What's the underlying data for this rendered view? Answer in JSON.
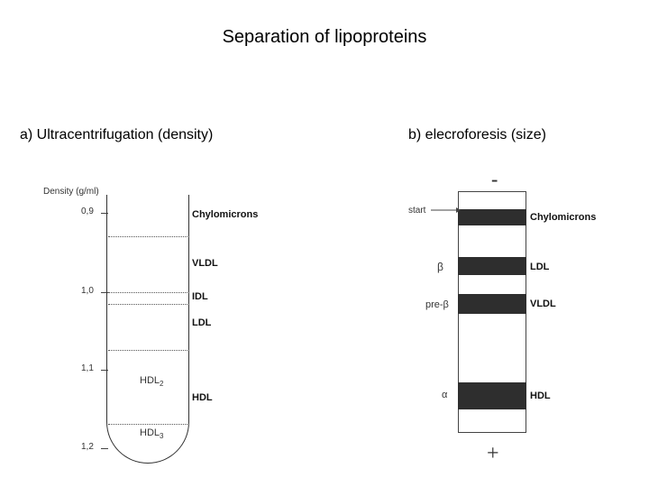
{
  "title": "Separation of lipoproteins",
  "panel_a": {
    "heading": "a) Ultracentrifugation (density)",
    "axis_label": "Density (g/ml)",
    "ticks": [
      "0,9",
      "1,0",
      "1,1",
      "1,2"
    ],
    "classes": [
      "Chylomicrons",
      "VLDL",
      "IDL",
      "LDL",
      "HDL"
    ],
    "sub_hdl2": "HDL",
    "sub_hdl2_idx": "2",
    "sub_hdl3": "HDL",
    "sub_hdl3_idx": "3"
  },
  "panel_b": {
    "heading": "b) elecroforesis (size)",
    "cathode": "-",
    "anode": "+",
    "start_label": "start",
    "mobility_labels": [
      "β",
      "pre-β",
      "α"
    ],
    "bands": [
      "Chylomicrons",
      "LDL",
      "VLDL",
      "HDL"
    ]
  }
}
